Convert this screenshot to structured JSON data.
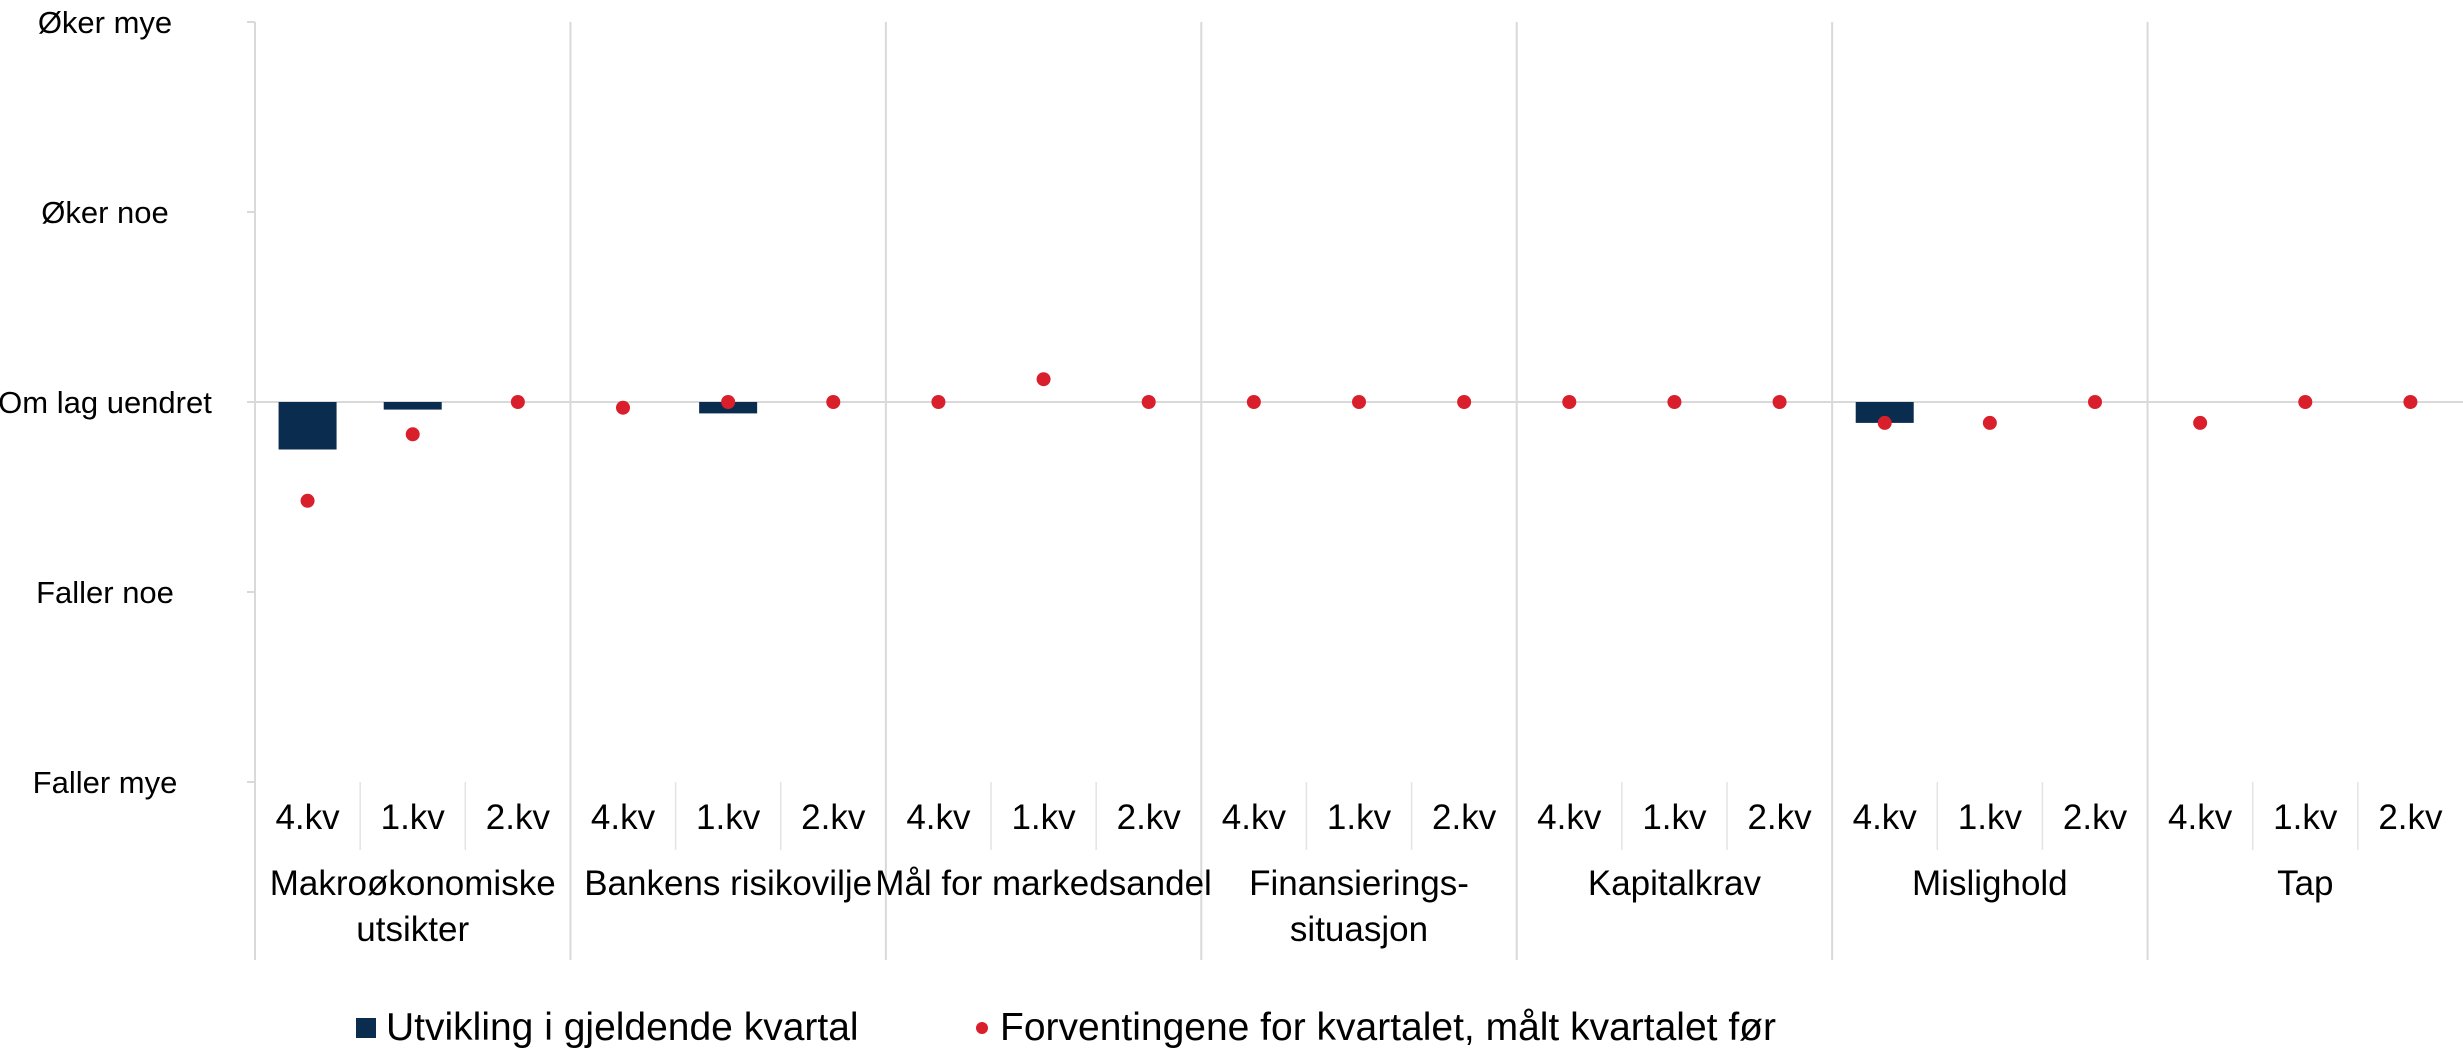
{
  "chart_data": {
    "type": "bar",
    "y_scale": [
      {
        "value": 2,
        "label": "Øker mye"
      },
      {
        "value": 1,
        "label": "Øker noe"
      },
      {
        "value": 0,
        "label": "Om lag uendret"
      },
      {
        "value": -1,
        "label": "Faller noe"
      },
      {
        "value": -2,
        "label": "Faller mye"
      }
    ],
    "ylim": [
      -2,
      2
    ],
    "groups": [
      {
        "label": "Makroøkonomiske utsikter",
        "quarters": [
          "4.kv",
          "1.kv",
          "2.kv"
        ]
      },
      {
        "label": "Bankens risikovilje",
        "quarters": [
          "4.kv",
          "1.kv",
          "2.kv"
        ]
      },
      {
        "label": "Mål for markedsandel",
        "quarters": [
          "4.kv",
          "1.kv",
          "2.kv"
        ]
      },
      {
        "label": "Finansierings-situasjon",
        "quarters": [
          "4.kv",
          "1.kv",
          "2.kv"
        ]
      },
      {
        "label": "Kapitalkrav",
        "quarters": [
          "4.kv",
          "1.kv",
          "2.kv"
        ]
      },
      {
        "label": "Mislighold",
        "quarters": [
          "4.kv",
          "1.kv",
          "2.kv"
        ]
      },
      {
        "label": "Tap",
        "quarters": [
          "4.kv",
          "1.kv",
          "2.kv"
        ]
      }
    ],
    "series": [
      {
        "name": "Utvikling i gjeldende kvartal",
        "kind": "bar",
        "color": "#0a2d4f",
        "values": [
          [
            -0.25,
            -0.04,
            null
          ],
          [
            null,
            -0.06,
            null
          ],
          [
            null,
            null,
            null
          ],
          [
            null,
            null,
            null
          ],
          [
            null,
            null,
            null
          ],
          [
            -0.11,
            null,
            null
          ],
          [
            null,
            null,
            null
          ]
        ]
      },
      {
        "name": "Forventingene for kvartalet, målt kvartalet før",
        "kind": "point",
        "color": "#d91f2b",
        "values": [
          [
            -0.52,
            -0.17,
            0.0
          ],
          [
            -0.03,
            0.0,
            0.0
          ],
          [
            0.0,
            0.12,
            0.0
          ],
          [
            0.0,
            0.0,
            0.0
          ],
          [
            0.0,
            0.0,
            0.0
          ],
          [
            -0.11,
            -0.11,
            0.0
          ],
          [
            -0.11,
            0.0,
            0.0
          ]
        ]
      }
    ],
    "grid": false,
    "legend_position": "bottom"
  }
}
